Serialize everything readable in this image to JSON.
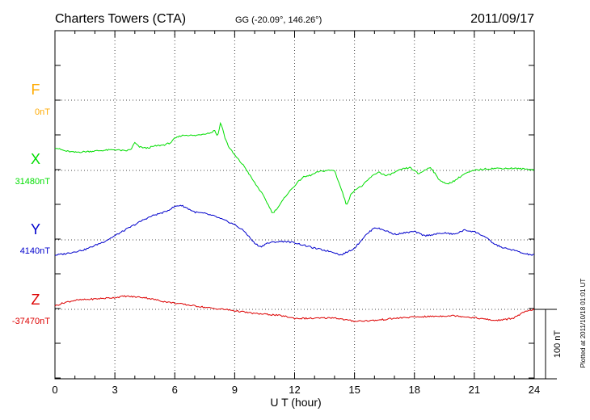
{
  "header": {
    "station": "Charters Towers (CTA)",
    "coords": "GG (-20.09°, 146.26°)",
    "date": "2011/09/17"
  },
  "footer": {
    "xlabel": "U T (hour)",
    "plotted": "Plotted at 2011/10/18 01:01 UT",
    "scale": "100 nT"
  },
  "colors": {
    "F": "#ffaa00",
    "X": "#00dd00",
    "Y": "#0000cc",
    "Z": "#dd0000"
  },
  "chart_data": {
    "type": "line",
    "title": "Charters Towers (CTA)",
    "xlabel": "U T (hour)",
    "xlim": [
      0,
      24
    ],
    "x_ticks": [
      "0",
      "3",
      "6",
      "9",
      "12",
      "15",
      "18",
      "21",
      "24"
    ],
    "grid": true,
    "scale_bar_nT": 100,
    "series": [
      {
        "name": "F",
        "baseline_label": "0nT",
        "baseline_nT": 0,
        "values": []
      },
      {
        "name": "X",
        "baseline_label": "31480nT",
        "baseline_nT": 31480,
        "x": [
          0,
          0.5,
          1,
          1.5,
          2,
          2.5,
          3,
          3.5,
          3.8,
          4.0,
          4.2,
          4.6,
          5,
          5.5,
          5.8,
          6,
          6.3,
          6.6,
          7,
          7.5,
          7.8,
          8.0,
          8.1,
          8.2,
          8.3,
          8.5,
          8.7,
          9,
          9.5,
          10,
          10.3,
          10.6,
          10.9,
          11.2,
          11.6,
          12,
          12.4,
          12.8,
          13.2,
          13.6,
          14,
          14.4,
          14.6,
          14.8,
          15.0,
          15.4,
          15.8,
          16.2,
          16.6,
          17,
          17.4,
          17.8,
          18.2,
          18.5,
          18.8,
          19.2,
          19.6,
          20,
          20.5,
          21,
          21.5,
          22,
          22.5,
          23,
          23.5,
          24
        ],
        "values": [
          33,
          28,
          26,
          27,
          28,
          29,
          30,
          28,
          30,
          40,
          34,
          32,
          35,
          37,
          40,
          46,
          50,
          51,
          50,
          53,
          54,
          58,
          50,
          55,
          70,
          48,
          34,
          22,
          5,
          -18,
          -30,
          -45,
          -62,
          -52,
          -35,
          -22,
          -10,
          -7,
          -2,
          0,
          0,
          -32,
          -50,
          -36,
          -28,
          -22,
          -10,
          -2,
          -8,
          -3,
          2,
          4,
          -5,
          0,
          5,
          -12,
          -20,
          -15,
          -5,
          0,
          2,
          3,
          3,
          3,
          2,
          1
        ]
      },
      {
        "name": "Y",
        "baseline_label": "4140nT",
        "baseline_nT": 4140,
        "x": [
          0,
          0.5,
          1,
          1.5,
          2,
          2.5,
          3,
          3.5,
          4,
          4.5,
          5,
          5.5,
          6,
          6.3,
          6.6,
          7,
          7.5,
          8,
          8.5,
          9,
          9.5,
          10,
          10.3,
          10.6,
          11,
          11.5,
          12,
          12.5,
          13,
          13.5,
          14,
          14.3,
          14.6,
          15,
          15.5,
          16,
          16.5,
          17,
          17.5,
          18,
          18.5,
          19,
          19.5,
          20,
          20.5,
          21,
          21.5,
          22,
          22.5,
          23,
          23.5,
          24
        ],
        "values": [
          -22,
          -20,
          -17,
          -14,
          -8,
          -2,
          6,
          14,
          22,
          30,
          36,
          40,
          48,
          50,
          46,
          40,
          38,
          34,
          28,
          22,
          12,
          -5,
          -10,
          -5,
          -3,
          -2,
          -4,
          -8,
          -12,
          -15,
          -18,
          -22,
          -18,
          -12,
          5,
          18,
          14,
          8,
          10,
          12,
          6,
          8,
          10,
          8,
          14,
          12,
          5,
          -6,
          -12,
          -15,
          -20,
          -22
        ]
      },
      {
        "name": "Z",
        "baseline_label": "-37470nT",
        "baseline_nT": -37470,
        "x": [
          0,
          0.5,
          1,
          1.5,
          2,
          2.5,
          3,
          3.5,
          4,
          4.5,
          5,
          5.5,
          6,
          6.5,
          7,
          7.5,
          8,
          8.5,
          9,
          9.5,
          10,
          11,
          11.5,
          12,
          13,
          14,
          14.5,
          15,
          16,
          17,
          18,
          19,
          20,
          21,
          22,
          22.5,
          23,
          23.5,
          24
        ],
        "values": [
          5,
          10,
          13,
          14,
          15,
          16,
          17,
          19,
          18,
          17,
          14,
          11,
          9,
          7,
          5,
          3,
          1,
          0,
          -2,
          -4,
          -6,
          -8,
          -10,
          -13,
          -13,
          -12,
          -15,
          -17,
          -16,
          -13,
          -11,
          -10,
          -9,
          -12,
          -16,
          -15,
          -12,
          -4,
          0
        ]
      }
    ]
  }
}
